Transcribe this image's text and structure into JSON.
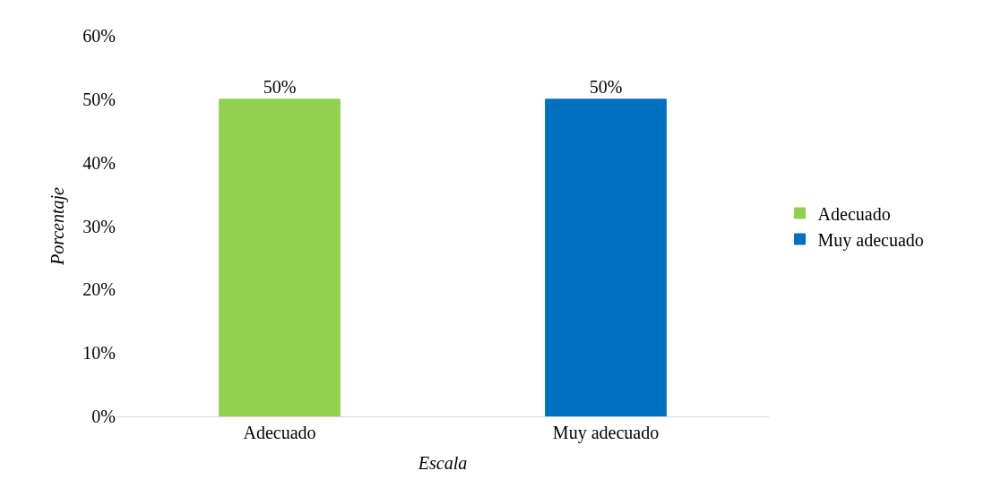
{
  "chart_data": {
    "type": "bar",
    "xlabel": "Escala",
    "ylabel": "Porcentaje",
    "categories": [
      "Adecuado",
      "Muy adecuado"
    ],
    "series": [
      {
        "name": "Adecuado",
        "color": "#92d050",
        "values": [
          50,
          null
        ],
        "value_labels": [
          "50%",
          null
        ]
      },
      {
        "name": "Muy adecuado",
        "color": "#0070c0",
        "values": [
          null,
          50
        ],
        "value_labels": [
          null,
          "50%"
        ]
      }
    ],
    "stacked": true,
    "ylim": [
      0,
      60
    ],
    "yticks": [
      {
        "value": 0,
        "label": "0%"
      },
      {
        "value": 10,
        "label": "10%"
      },
      {
        "value": 20,
        "label": "20%"
      },
      {
        "value": 30,
        "label": "30%"
      },
      {
        "value": 40,
        "label": "40%"
      },
      {
        "value": 50,
        "label": "50%"
      },
      {
        "value": 60,
        "label": "60%"
      }
    ],
    "grid": false,
    "legend": "right"
  }
}
